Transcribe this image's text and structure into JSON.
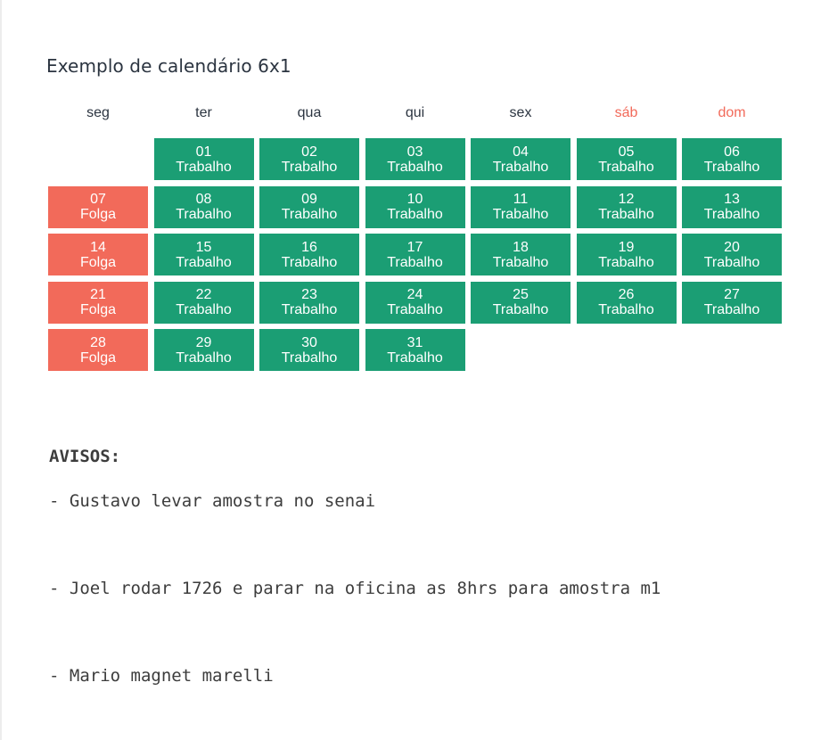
{
  "calendar": {
    "title": "Exemplo de calendário 6x1",
    "weekdays": [
      {
        "label": "seg",
        "weekend": false
      },
      {
        "label": "ter",
        "weekend": false
      },
      {
        "label": "qua",
        "weekend": false
      },
      {
        "label": "qui",
        "weekend": false
      },
      {
        "label": "sex",
        "weekend": false
      },
      {
        "label": "sáb",
        "weekend": true
      },
      {
        "label": "dom",
        "weekend": true
      }
    ],
    "leading_empty_days": 1,
    "days": [
      {
        "day": "01",
        "status": "Trabalho"
      },
      {
        "day": "02",
        "status": "Trabalho"
      },
      {
        "day": "03",
        "status": "Trabalho"
      },
      {
        "day": "04",
        "status": "Trabalho"
      },
      {
        "day": "05",
        "status": "Trabalho"
      },
      {
        "day": "06",
        "status": "Trabalho"
      },
      {
        "day": "07",
        "status": "Folga"
      },
      {
        "day": "08",
        "status": "Trabalho"
      },
      {
        "day": "09",
        "status": "Trabalho"
      },
      {
        "day": "10",
        "status": "Trabalho"
      },
      {
        "day": "11",
        "status": "Trabalho"
      },
      {
        "day": "12",
        "status": "Trabalho"
      },
      {
        "day": "13",
        "status": "Trabalho"
      },
      {
        "day": "14",
        "status": "Folga"
      },
      {
        "day": "15",
        "status": "Trabalho"
      },
      {
        "day": "16",
        "status": "Trabalho"
      },
      {
        "day": "17",
        "status": "Trabalho"
      },
      {
        "day": "18",
        "status": "Trabalho"
      },
      {
        "day": "19",
        "status": "Trabalho"
      },
      {
        "day": "20",
        "status": "Trabalho"
      },
      {
        "day": "21",
        "status": "Folga"
      },
      {
        "day": "22",
        "status": "Trabalho"
      },
      {
        "day": "23",
        "status": "Trabalho"
      },
      {
        "day": "24",
        "status": "Trabalho"
      },
      {
        "day": "25",
        "status": "Trabalho"
      },
      {
        "day": "26",
        "status": "Trabalho"
      },
      {
        "day": "27",
        "status": "Trabalho"
      },
      {
        "day": "28",
        "status": "Folga"
      },
      {
        "day": "29",
        "status": "Trabalho"
      },
      {
        "day": "30",
        "status": "Trabalho"
      },
      {
        "day": "31",
        "status": "Trabalho"
      }
    ],
    "colors": {
      "work": "#1b9e74",
      "off": "#f26a5a",
      "weekend_header": "#f26a5a"
    }
  },
  "notices": {
    "title": "AVISOS:",
    "items": [
      "- Gustavo levar amostra no senai",
      "- Joel rodar 1726 e parar na oficina as 8hrs para amostra m1",
      "- Mario magnet marelli"
    ]
  }
}
